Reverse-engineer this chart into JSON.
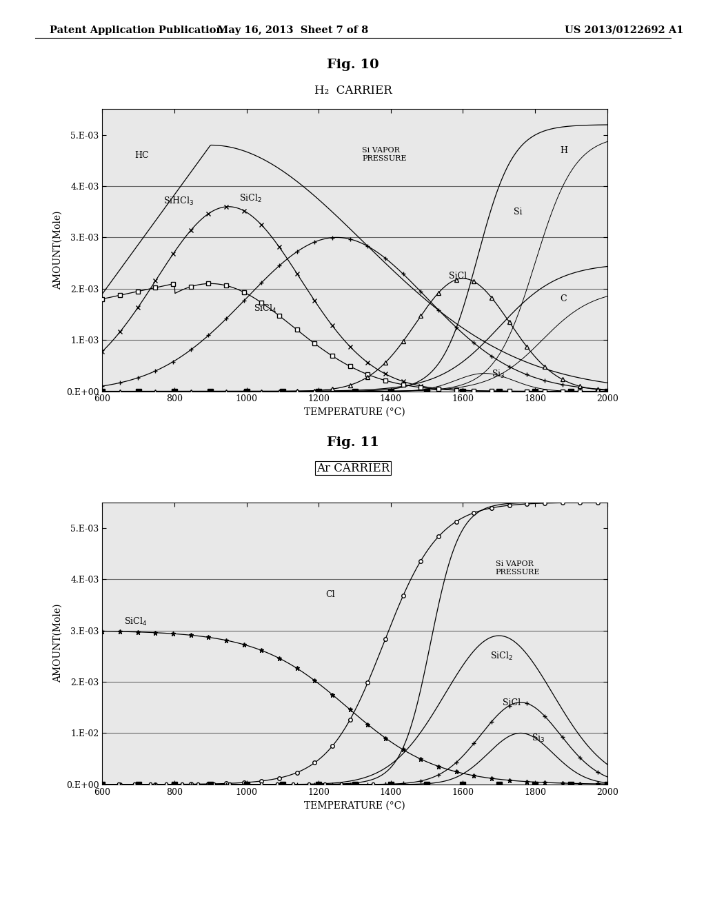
{
  "page_header_left": "Patent Application Publication",
  "page_header_mid": "May 16, 2013  Sheet 7 of 8",
  "page_header_right": "US 2013/0122692 A1",
  "fig10_title": "Fig. 10",
  "fig11_title": "Fig. 11",
  "fig10_subtitle": "H₂  CARRIER",
  "fig11_subtitle": "Ar CARRIER",
  "ylabel": "AMOUNT(Mole)",
  "xlabel": "TEMPERATURE (°C)",
  "xlim": [
    600,
    2000
  ],
  "ylim": [
    0,
    0.0055
  ],
  "yticks": [
    0,
    0.001,
    0.002,
    0.003,
    0.004,
    0.005
  ],
  "ytick_labels": [
    "0.E+00",
    "1.E-03",
    "2.E-03",
    "3.E-03",
    "4.E-03",
    "5.E-03"
  ],
  "xticks": [
    600,
    800,
    1000,
    1200,
    1400,
    1600,
    1800,
    2000
  ],
  "background_color": "#ffffff",
  "plot_bg_color": "#e8e8e8",
  "grid_color": "#666666",
  "line_color": "#000000"
}
